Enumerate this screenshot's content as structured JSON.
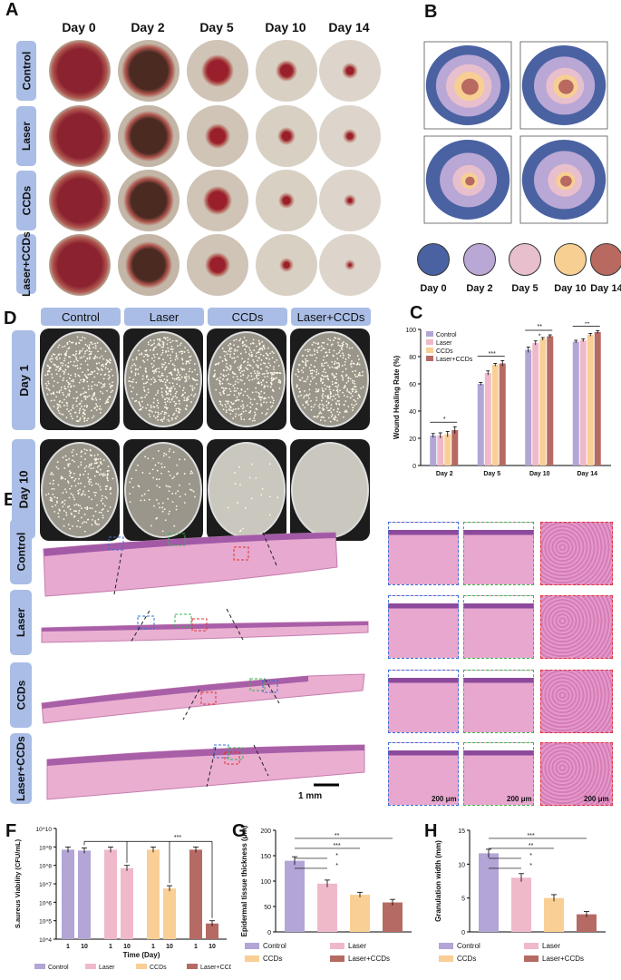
{
  "panels": {
    "A": "A",
    "B": "B",
    "C": "C",
    "D": "D",
    "E": "E",
    "F": "F",
    "G": "G",
    "H": "H"
  },
  "panelA": {
    "days": [
      "Day 0",
      "Day 2",
      "Day 5",
      "Day 10",
      "Day 14"
    ],
    "groups": [
      "Control",
      "Laser",
      "CCDs",
      "Laser+CCDs"
    ]
  },
  "panelB": {
    "legend": [
      {
        "label": "Day 0",
        "color": "#4a62a1"
      },
      {
        "label": "Day 2",
        "color": "#b9a7d6"
      },
      {
        "label": "Day 5",
        "color": "#e8bfcd"
      },
      {
        "label": "Day 10",
        "color": "#f7cf93"
      },
      {
        "label": "Day 14",
        "color": "#b86a60"
      }
    ]
  },
  "panelD": {
    "groups": [
      "Control",
      "Laser",
      "CCDs",
      "Laser+CCDs"
    ],
    "rows": [
      "Day 1",
      "Day 10"
    ]
  },
  "panelE": {
    "groups": [
      "Control",
      "Laser",
      "CCDs",
      "Laser+CCDs"
    ],
    "scale_main": "1 mm",
    "scale_zoom": "200 μm"
  },
  "colors": {
    "control": "#b3a5d6",
    "laser": "#f0b9c9",
    "ccds": "#f9cf95",
    "laser_ccds": "#b56b63"
  },
  "chart_data": [
    {
      "id": "C",
      "type": "bar",
      "categories": [
        "Day 2",
        "Day 5",
        "Day 10",
        "Day 14"
      ],
      "series": [
        {
          "name": "Control",
          "values": [
            22,
            60,
            85,
            91
          ],
          "errors": [
            1.5,
            1,
            2,
            1
          ]
        },
        {
          "name": "Laser",
          "values": [
            22,
            68,
            90,
            92
          ],
          "errors": [
            2,
            1.5,
            1.5,
            1
          ]
        },
        {
          "name": "CCDs",
          "values": [
            23,
            74,
            93,
            96
          ],
          "errors": [
            2,
            1,
            1,
            1
          ]
        },
        {
          "name": "Laser+CCDs",
          "values": [
            26,
            75,
            95,
            98
          ],
          "errors": [
            2.5,
            2,
            1,
            1
          ]
        }
      ],
      "ylabel": "Wound Healing Rate (%)",
      "ylim": [
        0,
        100
      ],
      "yticks": [
        "0",
        "20",
        "40",
        "60",
        "80",
        "100"
      ],
      "significance": [
        "*",
        "***",
        "**",
        "*",
        "**"
      ]
    },
    {
      "id": "F",
      "type": "bar",
      "ylabel": "S.aureus Viability (CFU/mL)",
      "xlabel": "Time (Day)",
      "yticks": [
        "10^4",
        "10^5",
        "10^6",
        "10^7",
        "10^8",
        "10^9",
        "10^10"
      ],
      "log_scale": true,
      "ylim": [
        4,
        10
      ],
      "groups": [
        "Control",
        "Laser",
        "CCDs",
        "Laser+CCDs"
      ],
      "x_labels": [
        "1",
        "10"
      ],
      "values_log10": [
        [
          8.85,
          8.8
        ],
        [
          8.85,
          7.85
        ],
        [
          8.85,
          6.75
        ],
        [
          8.85,
          4.85
        ]
      ],
      "significance": "***"
    },
    {
      "id": "G",
      "type": "bar",
      "categories": [
        "Control",
        "Laser",
        "CCDs",
        "Laser+CCDs"
      ],
      "values": [
        140,
        95,
        73,
        58
      ],
      "errors": [
        8,
        7,
        5,
        6
      ],
      "ylabel": "Epidermal tissue thickness (μm)",
      "ylim": [
        0,
        200
      ],
      "yticks": [
        "0",
        "50",
        "100",
        "150",
        "200"
      ],
      "significance": [
        "**",
        "***",
        "*",
        "*"
      ]
    },
    {
      "id": "H",
      "type": "bar",
      "categories": [
        "Control",
        "Laser",
        "CCDs",
        "Laser+CCDs"
      ],
      "values": [
        11.6,
        8.0,
        5.0,
        2.6
      ],
      "errors": [
        0.6,
        0.6,
        0.5,
        0.4
      ],
      "ylabel": "Granulation width (mm)",
      "ylim": [
        0,
        15
      ],
      "yticks": [
        "0",
        "5",
        "10",
        "15"
      ],
      "significance": [
        "***",
        "**",
        "*",
        "*"
      ]
    }
  ]
}
